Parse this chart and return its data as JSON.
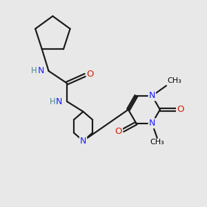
{
  "background_color": "#e8e8e8",
  "atom_colors": {
    "C": "#000000",
    "N": "#1a1aff",
    "O": "#cc2200",
    "H": "#4a8a8a"
  },
  "bond_color": "#1a1a1a",
  "bond_width": 1.6,
  "figsize": [
    3.0,
    3.0
  ],
  "dpi": 100
}
